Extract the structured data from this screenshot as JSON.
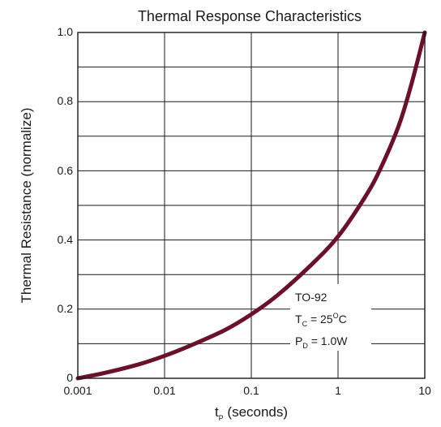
{
  "chart_data": {
    "type": "line",
    "title": "Thermal Response Characteristics",
    "ylabel": "Thermal Resistance (normalize)",
    "xlabel": {
      "main": "t",
      "subscript": "P",
      "suffix": " (seconds)"
    },
    "xscale": "log",
    "xlim": [
      0.001,
      10
    ],
    "ylim": [
      0,
      1.0
    ],
    "x_ticks": [
      "0.001",
      "0.01",
      "0.1",
      "1",
      "10"
    ],
    "y_ticks": [
      "0",
      "0.2",
      "0.4",
      "0.6",
      "0.8",
      "1.0"
    ],
    "grid": true,
    "series": [
      {
        "color": "#6b0f2a",
        "points": [
          {
            "x": 0.001,
            "y": 0.0
          },
          {
            "x": 0.002,
            "y": 0.015
          },
          {
            "x": 0.005,
            "y": 0.04
          },
          {
            "x": 0.01,
            "y": 0.065
          },
          {
            "x": 0.02,
            "y": 0.095
          },
          {
            "x": 0.05,
            "y": 0.14
          },
          {
            "x": 0.1,
            "y": 0.185
          },
          {
            "x": 0.2,
            "y": 0.24
          },
          {
            "x": 0.5,
            "y": 0.33
          },
          {
            "x": 1,
            "y": 0.41
          },
          {
            "x": 2,
            "y": 0.52
          },
          {
            "x": 3,
            "y": 0.6
          },
          {
            "x": 5,
            "y": 0.73
          },
          {
            "x": 7,
            "y": 0.85
          },
          {
            "x": 10,
            "y": 1.0
          }
        ]
      }
    ],
    "annotations": {
      "package": "TO-92",
      "tc_main": "T",
      "tc_sub": "C",
      "tc_value": " = 25",
      "tc_sup": "O",
      "tc_unit": "C",
      "pd_main": "P",
      "pd_sub": "D",
      "pd_value": " = 1.0W"
    }
  }
}
